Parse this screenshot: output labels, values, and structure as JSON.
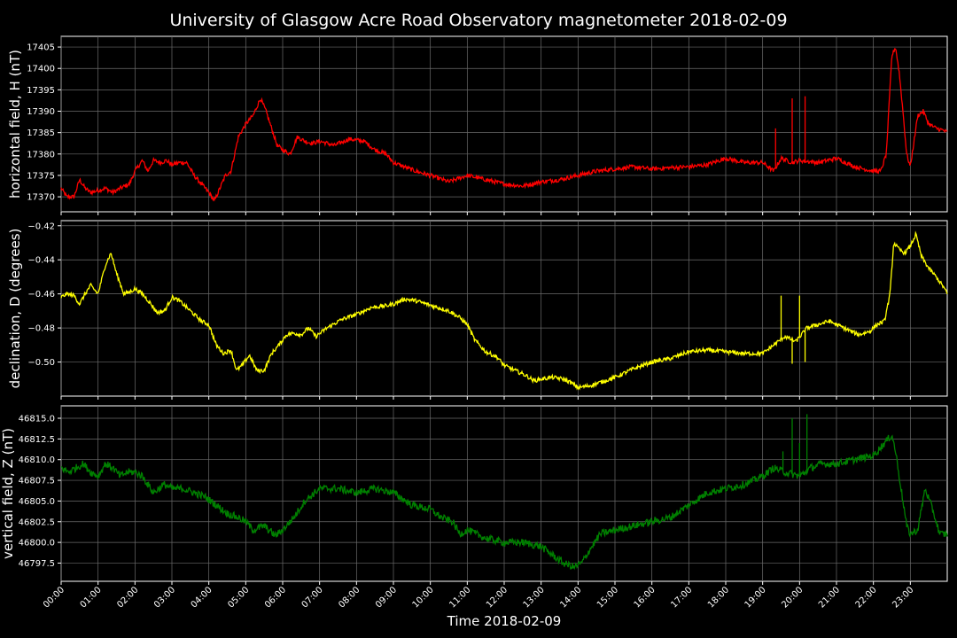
{
  "chart_data": {
    "type": "line",
    "title": "University of Glasgow Acre Road Observatory magnetometer 2018-02-09",
    "xlabel": "Time 2018-02-09",
    "x_ticks": [
      "00:00",
      "01:00",
      "02:00",
      "03:00",
      "04:00",
      "05:00",
      "06:00",
      "07:00",
      "08:00",
      "09:00",
      "10:00",
      "11:00",
      "12:00",
      "13:00",
      "14:00",
      "15:00",
      "16:00",
      "17:00",
      "18:00",
      "19:00",
      "20:00",
      "21:00",
      "22:00",
      "23:00"
    ],
    "xlim_hours": [
      0,
      24
    ],
    "grid": true,
    "panels": [
      {
        "name": "H",
        "ylabel": "horizontal field, H (nT)",
        "color": "#ff0000",
        "ylim": [
          17366.5,
          17407.5
        ],
        "yticks": [
          17370,
          17375,
          17380,
          17385,
          17390,
          17395,
          17400,
          17405
        ],
        "yticklabels": [
          "17370",
          "17375",
          "17380",
          "17385",
          "17390",
          "17395",
          "17400",
          "17405"
        ],
        "noise": 0.5,
        "series": {
          "x": [
            0,
            0.15,
            0.35,
            0.5,
            0.65,
            0.8,
            1.0,
            1.2,
            1.4,
            1.6,
            1.85,
            2.0,
            2.2,
            2.35,
            2.5,
            2.7,
            2.85,
            3.0,
            3.2,
            3.4,
            3.6,
            3.8,
            4.0,
            4.15,
            4.3,
            4.45,
            4.6,
            4.8,
            5.0,
            5.2,
            5.4,
            5.55,
            5.7,
            5.85,
            6.0,
            6.2,
            6.4,
            6.6,
            6.8,
            7.0,
            7.4,
            7.8,
            8.2,
            8.5,
            8.8,
            9.0,
            9.3,
            9.6,
            10.0,
            10.5,
            11.0,
            11.5,
            12.0,
            12.5,
            13.0,
            13.5,
            14.0,
            14.5,
            15.0,
            15.5,
            16.0,
            16.5,
            17.0,
            17.5,
            18.0,
            18.5,
            19.0,
            19.3,
            19.5,
            19.8,
            20.0,
            20.5,
            21.0,
            21.5,
            22.0,
            22.2,
            22.35,
            22.5,
            22.6,
            22.7,
            22.8,
            22.9,
            23.0,
            23.1,
            23.2,
            23.35,
            23.5,
            23.7,
            23.9,
            24.0
          ],
          "y": [
            17372,
            17370,
            17370,
            17374,
            17372,
            17371,
            17371.5,
            17372,
            17371,
            17372,
            17373,
            17376,
            17378.5,
            17376,
            17378.5,
            17378,
            17378.5,
            17377.5,
            17378,
            17378,
            17375,
            17373,
            17371,
            17369,
            17372,
            17375,
            17376,
            17384,
            17387,
            17389,
            17393,
            17390,
            17386,
            17382,
            17381,
            17380,
            17384,
            17383,
            17382.5,
            17383,
            17382,
            17383.5,
            17383,
            17381,
            17380,
            17378,
            17377,
            17376,
            17375,
            17373.5,
            17375,
            17374,
            17373,
            17372.5,
            17373.5,
            17374,
            17375,
            17376,
            17376.5,
            17377,
            17376.5,
            17376.8,
            17377,
            17377.5,
            17379,
            17378,
            17378,
            17376,
            17379,
            17378,
            17378.5,
            17378,
            17379,
            17377,
            17376,
            17376,
            17380,
            17403,
            17405,
            17399,
            17390,
            17380,
            17377,
            17383,
            17389,
            17390,
            17387,
            17386,
            17385.5,
            17385
          ]
        },
        "spikes": [
          [
            19.35,
            17386
          ],
          [
            19.8,
            17393
          ],
          [
            20.15,
            17393.5
          ]
        ]
      },
      {
        "name": "D",
        "ylabel": "declination, D (degrees)",
        "color": "#ffff00",
        "ylim": [
          -0.52,
          -0.417
        ],
        "yticks": [
          -0.5,
          -0.48,
          -0.46,
          -0.44,
          -0.42
        ],
        "yticklabels": [
          "−0.50",
          "−0.48",
          "−0.46",
          "−0.44",
          "−0.42"
        ],
        "noise": 0.0012,
        "series": {
          "x": [
            0,
            0.15,
            0.35,
            0.5,
            0.65,
            0.8,
            1.0,
            1.2,
            1.35,
            1.5,
            1.7,
            1.85,
            2.0,
            2.2,
            2.4,
            2.6,
            2.8,
            3.0,
            3.2,
            3.4,
            3.6,
            3.8,
            4.0,
            4.2,
            4.4,
            4.6,
            4.75,
            4.9,
            5.1,
            5.3,
            5.5,
            5.7,
            5.9,
            6.1,
            6.3,
            6.5,
            6.7,
            6.9,
            7.2,
            7.6,
            8.0,
            8.4,
            8.8,
            9.0,
            9.3,
            9.6,
            9.9,
            10.2,
            10.5,
            10.8,
            11.0,
            11.2,
            11.5,
            11.8,
            12.0,
            12.3,
            12.6,
            12.8,
            13.0,
            13.3,
            13.6,
            13.8,
            14.0,
            14.3,
            14.6,
            15.0,
            15.5,
            16.0,
            16.5,
            17.0,
            17.5,
            18.0,
            18.5,
            19.0,
            19.3,
            19.6,
            19.9,
            20.2,
            20.5,
            20.8,
            21.0,
            21.3,
            21.6,
            21.9,
            22.1,
            22.3,
            22.45,
            22.55,
            22.7,
            22.85,
            23.0,
            23.15,
            23.3,
            23.5,
            23.7,
            23.9,
            24.0
          ],
          "y": [
            -0.462,
            -0.46,
            -0.461,
            -0.466,
            -0.46,
            -0.455,
            -0.46,
            -0.443,
            -0.436,
            -0.448,
            -0.46,
            -0.459,
            -0.457,
            -0.46,
            -0.465,
            -0.471,
            -0.47,
            -0.462,
            -0.464,
            -0.468,
            -0.472,
            -0.476,
            -0.478,
            -0.49,
            -0.495,
            -0.493,
            -0.505,
            -0.502,
            -0.496,
            -0.505,
            -0.505,
            -0.495,
            -0.49,
            -0.484,
            -0.483,
            -0.484,
            -0.48,
            -0.485,
            -0.48,
            -0.475,
            -0.472,
            -0.468,
            -0.467,
            -0.466,
            -0.463,
            -0.464,
            -0.466,
            -0.468,
            -0.47,
            -0.474,
            -0.478,
            -0.487,
            -0.494,
            -0.497,
            -0.502,
            -0.505,
            -0.508,
            -0.511,
            -0.51,
            -0.509,
            -0.51,
            -0.512,
            -0.515,
            -0.514,
            -0.512,
            -0.509,
            -0.504,
            -0.5,
            -0.498,
            -0.494,
            -0.493,
            -0.494,
            -0.495,
            -0.495,
            -0.49,
            -0.485,
            -0.488,
            -0.48,
            -0.478,
            -0.476,
            -0.478,
            -0.481,
            -0.484,
            -0.482,
            -0.478,
            -0.476,
            -0.46,
            -0.43,
            -0.434,
            -0.436,
            -0.432,
            -0.425,
            -0.438,
            -0.445,
            -0.45,
            -0.456,
            -0.46
          ]
        },
        "spikes": [
          [
            19.5,
            -0.461
          ],
          [
            19.8,
            -0.501
          ],
          [
            20.0,
            -0.461
          ],
          [
            20.15,
            -0.5
          ]
        ]
      },
      {
        "name": "Z",
        "ylabel": "vertical field, Z (nT)",
        "color": "#008000",
        "ylim": [
          46795.3,
          46816.5
        ],
        "yticks": [
          46797.5,
          46800,
          46802.5,
          46805,
          46807.5,
          46810,
          46812.5,
          46815
        ],
        "yticklabels": [
          "46797.5",
          "46800.0",
          "46802.5",
          "46805.0",
          "46807.5",
          "46810.0",
          "46812.5",
          "46815.0"
        ],
        "noise": 0.45,
        "series": {
          "x": [
            0,
            0.2,
            0.4,
            0.6,
            0.8,
            1.0,
            1.2,
            1.4,
            1.6,
            1.8,
            2.0,
            2.2,
            2.5,
            2.8,
            3.0,
            3.3,
            3.6,
            3.9,
            4.2,
            4.5,
            4.8,
            5.0,
            5.2,
            5.5,
            5.8,
            6.0,
            6.3,
            6.6,
            7.0,
            7.5,
            8.0,
            8.5,
            9.0,
            9.5,
            10.0,
            10.3,
            10.6,
            10.8,
            11.0,
            11.5,
            12.0,
            12.5,
            13.0,
            13.3,
            13.6,
            13.9,
            14.1,
            14.3,
            14.6,
            15.0,
            15.5,
            16.0,
            16.5,
            17.0,
            17.5,
            18.0,
            18.5,
            19.0,
            19.3,
            19.6,
            20.0,
            20.3,
            20.6,
            21.0,
            21.5,
            22.0,
            22.3,
            22.5,
            22.6,
            22.7,
            22.8,
            22.9,
            23.0,
            23.2,
            23.4,
            23.6,
            23.8,
            24.0
          ],
          "y": [
            46809,
            46808.5,
            46809,
            46809.5,
            46808.5,
            46808,
            46809.5,
            46809,
            46808,
            46808.5,
            46808.5,
            46808,
            46806,
            46807,
            46806.5,
            46806.5,
            46806,
            46805.5,
            46804.5,
            46803.5,
            46803,
            46802.5,
            46801.5,
            46802,
            46800.8,
            46801.5,
            46803,
            46805,
            46806.5,
            46806.5,
            46806,
            46806.5,
            46806,
            46804.5,
            46804,
            46803,
            46802.5,
            46801,
            46801.5,
            46800.5,
            46800,
            46800,
            46799.5,
            46798.5,
            46797.5,
            46797,
            46797.5,
            46799,
            46801,
            46801.5,
            46802,
            46802.5,
            46803,
            46804.5,
            46806,
            46806.5,
            46807,
            46808,
            46809,
            46808.5,
            46808,
            46809,
            46809.5,
            46809.5,
            46810,
            46810.5,
            46812,
            46813,
            46811,
            46808,
            46805,
            46802,
            46801,
            46801.5,
            46806.5,
            46804,
            46801,
            46801
          ]
        },
        "spikes": [
          [
            19.55,
            46811
          ],
          [
            19.8,
            46815
          ],
          [
            20.0,
            46812
          ],
          [
            20.2,
            46815.5
          ]
        ]
      }
    ]
  }
}
